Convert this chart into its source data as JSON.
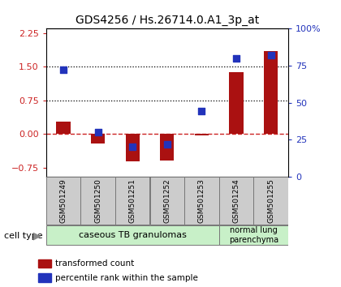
{
  "title": "GDS4256 / Hs.26714.0.A1_3p_at",
  "samples": [
    "GSM501249",
    "GSM501250",
    "GSM501251",
    "GSM501252",
    "GSM501253",
    "GSM501254",
    "GSM501255"
  ],
  "transformed_count": [
    0.28,
    -0.22,
    -0.62,
    -0.6,
    -0.04,
    1.38,
    1.85
  ],
  "percentile_rank": [
    72,
    30,
    20,
    22,
    44,
    80,
    82
  ],
  "ylim_left": [
    -0.95,
    2.35
  ],
  "ylim_right": [
    0,
    100
  ],
  "left_ticks": [
    -0.75,
    0,
    0.75,
    1.5,
    2.25
  ],
  "right_ticks": [
    0,
    25,
    50,
    75,
    100
  ],
  "hlines": [
    0.75,
    1.5
  ],
  "bar_color": "#aa1111",
  "dot_color": "#2233bb",
  "zero_line_color": "#cc2222",
  "bg_color": "#ffffff",
  "plot_bg": "#ffffff",
  "group1_label": "caseous TB granulomas",
  "group2_label": "normal lung\nparenchyma",
  "group1_indices": [
    0,
    1,
    2,
    3,
    4
  ],
  "group2_indices": [
    5,
    6
  ],
  "cell_type_label": "cell type",
  "legend_bar": "transformed count",
  "legend_dot": "percentile rank within the sample",
  "tick_label_color_left": "#cc2222",
  "tick_label_color_right": "#2233bb",
  "bar_width": 0.4,
  "dot_size": 40,
  "sample_box_color": "#cccccc",
  "group_box_color": "#c8f0c8",
  "arrow_color": "#888888"
}
